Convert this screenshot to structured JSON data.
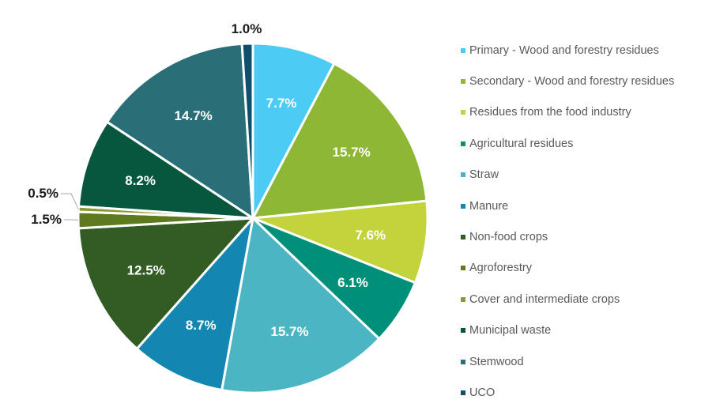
{
  "chart_data": {
    "type": "pie",
    "title": "",
    "unit": "%",
    "start_angle_deg": 0,
    "direction": "clockwise",
    "legend_position": "right",
    "slices": [
      {
        "label": "Primary - Wood and forestry residues",
        "value": 7.7,
        "display": "7.7%",
        "color": "#4ccbf5"
      },
      {
        "label": "Secondary - Wood and forestry residues",
        "value": 15.7,
        "display": "15.7%",
        "color": "#8db734"
      },
      {
        "label": "Residues from the food industry",
        "value": 7.6,
        "display": "7.6%",
        "color": "#c3d33c"
      },
      {
        "label": "Agricultural residues",
        "value": 6.1,
        "display": "6.1%",
        "color": "#009079"
      },
      {
        "label": "Straw",
        "value": 15.7,
        "display": "15.7%",
        "color": "#4bb5c4"
      },
      {
        "label": "Manure",
        "value": 8.7,
        "display": "8.7%",
        "color": "#1387b2"
      },
      {
        "label": "Non-food crops",
        "value": 12.5,
        "display": "12.5%",
        "color": "#335c25"
      },
      {
        "label": "Agroforestry",
        "value": 1.5,
        "display": "1.5%",
        "color": "#5d7a1e"
      },
      {
        "label": "Cover and intermediate crops",
        "value": 0.5,
        "display": "0.5%",
        "color": "#8a9a2e"
      },
      {
        "label": "Municipal waste",
        "value": 8.2,
        "display": "8.2%",
        "color": "#07573f"
      },
      {
        "label": "Stemwood",
        "value": 14.7,
        "display": "14.7%",
        "color": "#2a6e78"
      },
      {
        "label": "UCO",
        "value": 1.0,
        "display": "1.0%",
        "color": "#0e4f6e"
      }
    ]
  }
}
